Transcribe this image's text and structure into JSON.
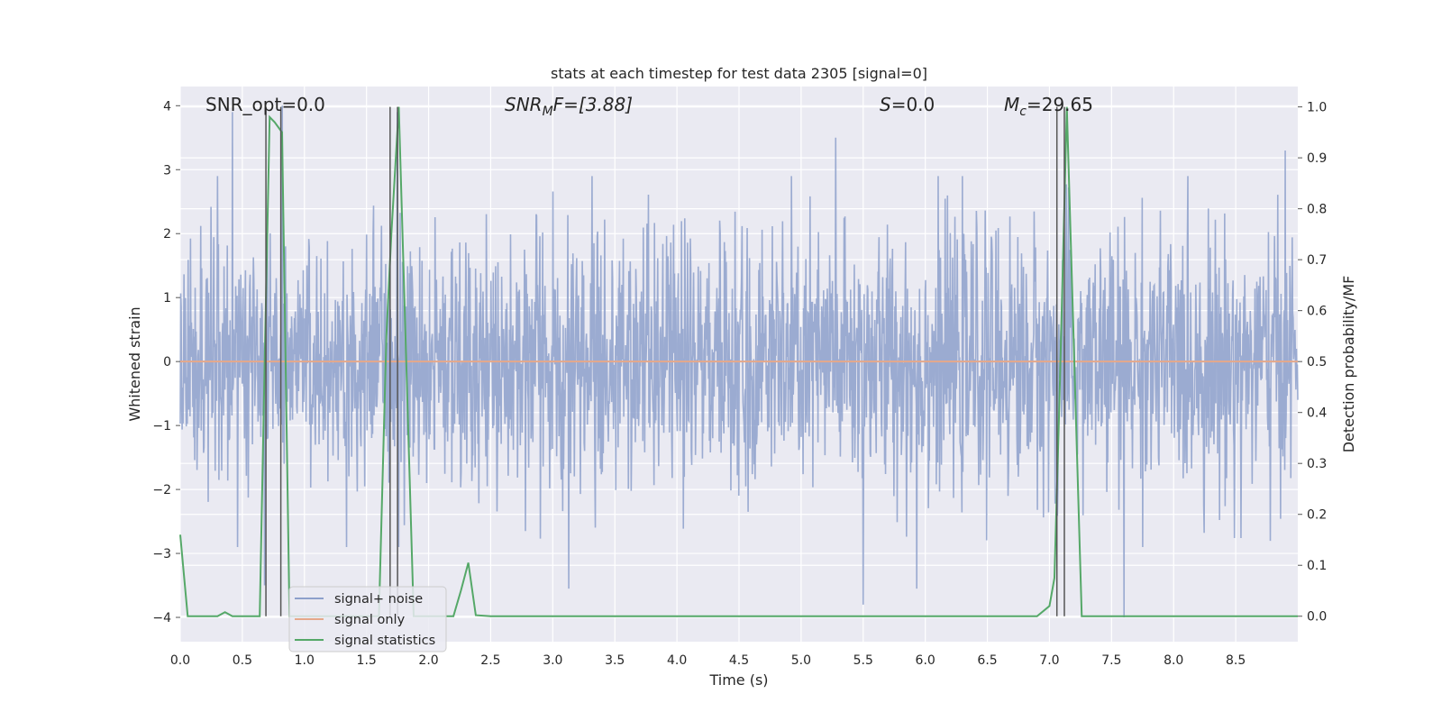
{
  "chart_data": {
    "type": "line",
    "title": "stats at each timestep for test data 2305 [signal=0]",
    "xlabel": "Time (s)",
    "ylabel_left": "Whitened strain",
    "ylabel_right": "Detection probability/MF",
    "xlim": [
      0,
      9.0
    ],
    "ylim_left": [
      -4.38,
      4.3
    ],
    "ylim_right": [
      -0.05,
      1.04
    ],
    "xticks": [
      0.0,
      0.5,
      1.0,
      1.5,
      2.0,
      2.5,
      3.0,
      3.5,
      4.0,
      4.5,
      5.0,
      5.5,
      6.0,
      6.5,
      7.0,
      7.5,
      8.0,
      8.5
    ],
    "xtick_labels": [
      "0.0",
      "0.5",
      "1.0",
      "1.5",
      "2.0",
      "2.5",
      "3.0",
      "3.5",
      "4.0",
      "4.5",
      "5.0",
      "5.5",
      "6.0",
      "6.5",
      "7.0",
      "7.5",
      "8.0",
      "8.5"
    ],
    "yticks_left": [
      4,
      3,
      2,
      1,
      0,
      -1,
      -2,
      -3,
      -4
    ],
    "ytick_labels_left": [
      "4",
      "3",
      "2",
      "1",
      "0",
      "−1",
      "−2",
      "−3",
      "−4"
    ],
    "yticks_right": [
      1.0,
      0.9,
      0.8,
      0.7,
      0.6,
      0.5,
      0.4,
      0.3,
      0.2,
      0.1,
      0.0
    ],
    "ytick_labels_right": [
      "1.0",
      "0.9",
      "0.8",
      "0.7",
      "0.6",
      "0.5",
      "0.4",
      "0.3",
      "0.2",
      "0.1",
      "0.0"
    ],
    "grid": true,
    "legend_position": "lower-left",
    "annotations": {
      "snr_opt": "SNR_opt=0.0",
      "snr_mf_main": "SNR",
      "snr_mf_sub": "M",
      "snr_mf_rest": "F=[3.88]",
      "s_main": "S",
      "s_rest": "=0.0",
      "mc_main": "M",
      "mc_sub": "c",
      "mc_rest": "=29.65"
    },
    "series": [
      {
        "name": "signal+ noise",
        "axis": "left",
        "color": "#8da0cb",
        "style": "dense noise trace, typical range approx -2.5 to 2.5, peaks to about ±4",
        "notable_peaks": [
          {
            "t": 0.42,
            "v": 3.9
          },
          {
            "t": 0.68,
            "v": -3.5
          },
          {
            "t": 0.82,
            "v": 4.0
          },
          {
            "t": 1.75,
            "v": 3.9
          },
          {
            "t": 3.13,
            "v": -3.55
          },
          {
            "t": 5.28,
            "v": 3.5
          },
          {
            "t": 5.5,
            "v": -3.8
          },
          {
            "t": 5.93,
            "v": -3.55
          },
          {
            "t": 7.6,
            "v": -4.0
          },
          {
            "t": 8.9,
            "v": 3.3
          }
        ]
      },
      {
        "name": "signal only",
        "axis": "left",
        "color": "#e5a88a",
        "t": [
          0.0,
          9.0
        ],
        "v": [
          0.0,
          0.0
        ]
      },
      {
        "name": "signal statistics",
        "axis": "right",
        "color": "#55a868",
        "t": [
          0.0,
          0.06,
          0.12,
          0.3,
          0.36,
          0.42,
          0.5,
          0.56,
          0.64,
          0.68,
          0.72,
          0.76,
          0.82,
          0.88,
          0.94,
          1.0,
          1.5,
          1.6,
          1.66,
          1.7,
          1.76,
          1.82,
          1.88,
          1.94,
          2.0,
          2.1,
          2.2,
          2.26,
          2.32,
          2.38,
          2.5,
          3.0,
          4.0,
          5.0,
          6.0,
          6.9,
          7.0,
          7.04,
          7.08,
          7.14,
          7.2,
          7.26,
          7.34,
          8.0,
          9.0
        ],
        "v": [
          0.16,
          0.0,
          0.0,
          0.0,
          0.008,
          0.0,
          0.0,
          0.0,
          0.0,
          0.5,
          0.98,
          0.97,
          0.95,
          0.0,
          0.0,
          0.0,
          0.0,
          0.0,
          0.55,
          0.75,
          1.0,
          0.5,
          0.0,
          0.0,
          0.0,
          0.0,
          0.0,
          0.05,
          0.105,
          0.002,
          0.0,
          0.0,
          0.0,
          0.0,
          0.0,
          0.0,
          0.02,
          0.075,
          0.42,
          1.0,
          0.5,
          0.0,
          0.0,
          0.0,
          0.0
        ]
      }
    ],
    "vertical_markers": [
      {
        "t": 0.69,
        "color": "#555555"
      },
      {
        "t": 0.81,
        "color": "#555555"
      },
      {
        "t": 1.69,
        "color": "#555555"
      },
      {
        "t": 1.75,
        "color": "#555555"
      },
      {
        "t": 7.06,
        "color": "#555555"
      },
      {
        "t": 7.12,
        "color": "#555555"
      }
    ],
    "colors": {
      "axes_background": "#eaeaf2",
      "grid": "#ffffff",
      "noise": "#8da0cb",
      "signal_only": "#e5a88a",
      "statistics": "#55a868",
      "markers": "#555555"
    }
  }
}
